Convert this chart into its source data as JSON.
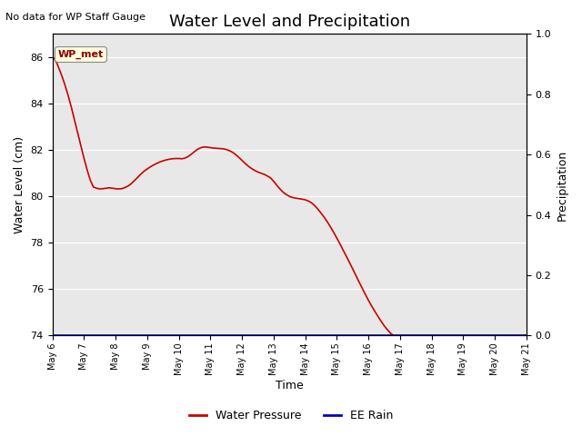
{
  "title": "Water Level and Precipitation",
  "top_left_text": "No data for WP Staff Gauge",
  "xlabel": "Time",
  "ylabel_left": "Water Level (cm)",
  "ylabel_right": "Precipitation",
  "annotation_box": "WP_met",
  "ylim_left": [
    74,
    87
  ],
  "ylim_right": [
    0.0,
    1.0
  ],
  "x_tick_labels": [
    "May 6",
    "May 7",
    "May 8",
    "May 9",
    "May 10",
    "May 11",
    "May 12",
    "May 13",
    "May 14",
    "May 15",
    "May 16",
    "May 17",
    "May 18",
    "May 19",
    "May 20",
    "May 21"
  ],
  "background_color": "#e8e8e8",
  "line_color_wp": "#cc0000",
  "line_color_rain": "#0000cc",
  "legend_wp": "Water Pressure",
  "legend_rain": "EE Rain",
  "title_fontsize": 13,
  "axis_fontsize": 9,
  "tick_fontsize": 8,
  "water_pressure_x": [
    0.0,
    0.05,
    0.1,
    0.15,
    0.2,
    0.3,
    0.4,
    0.5,
    0.6,
    0.7,
    0.8,
    0.9,
    1.0,
    1.1,
    1.2,
    1.3,
    1.4,
    1.5,
    1.6,
    1.7,
    1.8,
    1.9,
    2.0,
    2.1,
    2.2,
    2.3,
    2.4,
    2.5,
    2.6,
    2.7,
    2.8,
    2.9,
    3.0,
    3.1,
    3.2,
    3.3,
    3.4,
    3.5,
    3.6,
    3.7,
    3.8,
    3.9,
    4.0,
    4.1,
    4.2,
    4.3,
    4.4,
    4.5,
    4.6,
    4.7,
    4.8,
    4.9,
    5.0,
    5.1,
    5.2,
    5.3,
    5.4,
    5.5,
    5.6,
    5.7,
    5.8,
    5.9,
    6.0,
    6.1,
    6.2,
    6.3,
    6.4,
    6.5,
    6.6,
    6.7,
    6.8,
    6.9,
    7.0,
    7.1,
    7.2,
    7.3,
    7.4,
    7.5,
    7.6,
    7.7,
    7.8,
    7.9,
    8.0,
    8.1,
    8.2,
    8.3,
    8.4,
    8.5,
    8.6,
    8.7,
    8.8,
    8.9,
    9.0,
    9.1,
    9.2,
    9.3,
    9.4,
    9.5,
    9.6,
    9.7,
    9.8,
    9.9,
    10.0,
    10.1,
    10.2,
    10.3,
    10.4,
    10.5,
    10.6,
    10.7,
    10.8,
    10.9,
    11.0,
    11.1,
    11.2,
    11.3,
    11.4,
    11.5,
    11.6,
    11.7,
    11.8,
    11.9,
    12.0,
    12.1,
    12.2,
    12.3,
    12.4,
    12.5,
    12.6,
    12.7,
    12.8,
    12.9,
    13.0,
    13.1,
    13.2,
    13.3,
    13.4,
    13.5,
    13.6,
    13.7,
    13.8,
    13.9,
    14.0,
    14.1,
    14.2,
    14.3,
    14.4,
    14.5,
    14.6,
    14.7,
    14.8,
    14.9,
    15.0
  ],
  "water_pressure_y": [
    86.0,
    85.95,
    85.85,
    85.72,
    85.55,
    85.2,
    84.8,
    84.35,
    83.85,
    83.3,
    82.75,
    82.2,
    81.65,
    81.15,
    80.7,
    80.4,
    80.35,
    80.32,
    80.33,
    80.35,
    80.37,
    80.35,
    80.33,
    80.32,
    80.33,
    80.38,
    80.45,
    80.55,
    80.68,
    80.82,
    80.96,
    81.08,
    81.18,
    81.27,
    81.35,
    81.42,
    81.48,
    81.53,
    81.57,
    81.6,
    81.62,
    81.63,
    81.63,
    81.62,
    81.65,
    81.72,
    81.82,
    81.93,
    82.03,
    82.1,
    82.13,
    82.12,
    82.1,
    82.08,
    82.07,
    82.06,
    82.05,
    82.02,
    81.97,
    81.9,
    81.8,
    81.68,
    81.55,
    81.42,
    81.3,
    81.2,
    81.12,
    81.05,
    81.0,
    80.95,
    80.88,
    80.8,
    80.65,
    80.48,
    80.32,
    80.18,
    80.08,
    80.0,
    79.95,
    79.92,
    79.9,
    79.88,
    79.85,
    79.8,
    79.72,
    79.6,
    79.45,
    79.28,
    79.1,
    78.9,
    78.68,
    78.45,
    78.2,
    77.95,
    77.68,
    77.42,
    77.15,
    76.88,
    76.6,
    76.32,
    76.05,
    75.78,
    75.52,
    75.28,
    75.05,
    74.83,
    74.62,
    74.42,
    74.25,
    74.1,
    74.0,
    74.0,
    74.0,
    74.0,
    74.0,
    74.0,
    74.0,
    74.0,
    74.0,
    74.0,
    74.0,
    74.0,
    74.0,
    74.0,
    74.0,
    74.0,
    74.0,
    74.0,
    74.0,
    74.0,
    74.0,
    74.0,
    74.0,
    74.0,
    74.0,
    74.0,
    74.0,
    74.0,
    74.0,
    74.0,
    74.0,
    74.0,
    74.0,
    74.0,
    74.0,
    74.0,
    74.0,
    74.0,
    74.0,
    74.0,
    74.0,
    74.0,
    74.0
  ]
}
